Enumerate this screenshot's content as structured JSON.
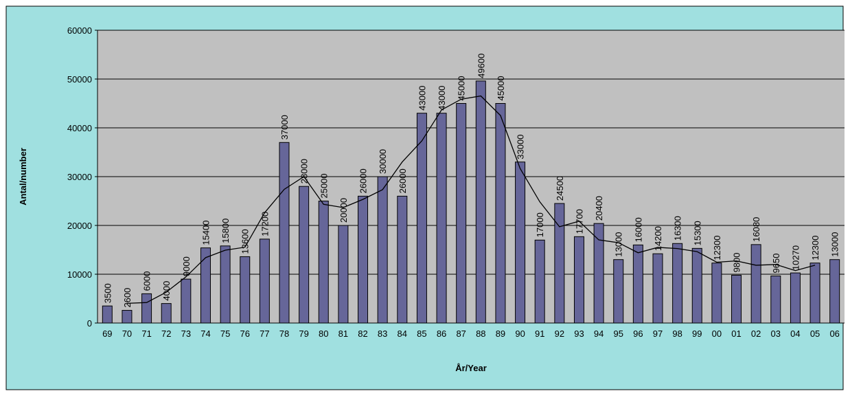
{
  "chart_data": {
    "type": "bar",
    "y_label": "Antal/number",
    "x_label": "År/Year",
    "categories": [
      "69",
      "70",
      "71",
      "72",
      "73",
      "74",
      "75",
      "76",
      "77",
      "78",
      "79",
      "80",
      "81",
      "82",
      "83",
      "84",
      "85",
      "86",
      "87",
      "88",
      "89",
      "90",
      "91",
      "92",
      "93",
      "94",
      "95",
      "96",
      "97",
      "98",
      "99",
      "00",
      "01",
      "02",
      "03",
      "04",
      "05",
      "06"
    ],
    "series": [
      {
        "type": "bar",
        "color": "#666699",
        "values": [
          3500,
          2600,
          6000,
          4000,
          9000,
          15400,
          15800,
          13600,
          17200,
          37000,
          28000,
          25000,
          20000,
          26000,
          30000,
          26000,
          43000,
          43000,
          45000,
          49600,
          45000,
          33000,
          17000,
          24500,
          17700,
          20400,
          13000,
          16000,
          14200,
          16300,
          15300,
          12300,
          9800,
          16080,
          9650,
          10270,
          12300,
          13000
        ]
      },
      {
        "type": "line",
        "color": "#000000",
        "values": [
          null,
          4033,
          4200,
          6333,
          9467,
          13400,
          14933,
          15533,
          22600,
          27400,
          30000,
          24333,
          23667,
          25333,
          27333,
          33000,
          37333,
          43667,
          45867,
          46533,
          42533,
          31667,
          24833,
          19733,
          20867,
          17033,
          16467,
          14400,
          15500,
          15267,
          14633,
          12467,
          12727,
          11843,
          12000,
          10740,
          11857,
          null
        ]
      }
    ],
    "ylim": [
      0,
      60000
    ],
    "yticks": [
      0,
      10000,
      20000,
      30000,
      40000,
      50000,
      60000
    ],
    "grid": true,
    "plot_background": "#c0c0c0",
    "background": "#a0e0e0"
  }
}
